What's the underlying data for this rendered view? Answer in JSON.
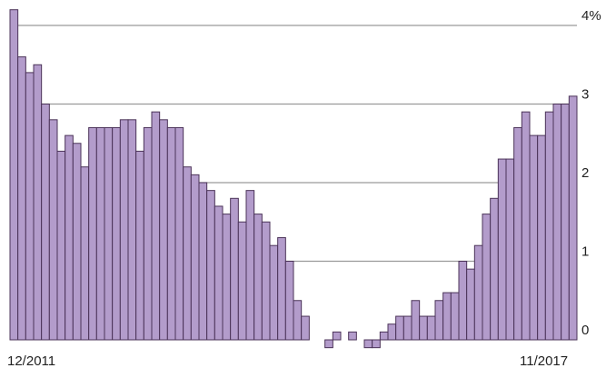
{
  "chart_data": {
    "type": "bar",
    "title": "",
    "xlabel": "",
    "ylabel": "",
    "unit": "%",
    "x_start_label": "12/2011",
    "x_end_label": "11/2017",
    "ylim": [
      -0.25,
      4.15
    ],
    "yticks": [
      {
        "value": 0,
        "label": "0"
      },
      {
        "value": 1,
        "label": "1"
      },
      {
        "value": 2,
        "label": "2"
      },
      {
        "value": 3,
        "label": "3"
      },
      {
        "value": 4,
        "label": "4%"
      }
    ],
    "grid": true,
    "colors": {
      "bar_fill": "#b39ccb",
      "bar_edge": "#4b3358",
      "grid": "#9a9a9a",
      "text": "#222222"
    },
    "values": [
      4.2,
      3.6,
      3.4,
      3.5,
      3.0,
      2.8,
      2.4,
      2.6,
      2.5,
      2.2,
      2.7,
      2.7,
      2.7,
      2.7,
      2.8,
      2.8,
      2.4,
      2.7,
      2.9,
      2.8,
      2.7,
      2.7,
      2.2,
      2.1,
      2.0,
      1.9,
      1.7,
      1.6,
      1.8,
      1.5,
      1.9,
      1.6,
      1.5,
      1.2,
      1.3,
      1.0,
      0.5,
      0.3,
      0.0,
      0.0,
      -0.1,
      0.1,
      0.0,
      0.1,
      0.0,
      -0.1,
      -0.1,
      0.1,
      0.2,
      0.3,
      0.3,
      0.5,
      0.3,
      0.3,
      0.5,
      0.6,
      0.6,
      1.0,
      0.9,
      1.2,
      1.6,
      1.8,
      2.3,
      2.3,
      2.7,
      2.9,
      2.6,
      2.6,
      2.9,
      3.0,
      3.0,
      3.1
    ]
  }
}
